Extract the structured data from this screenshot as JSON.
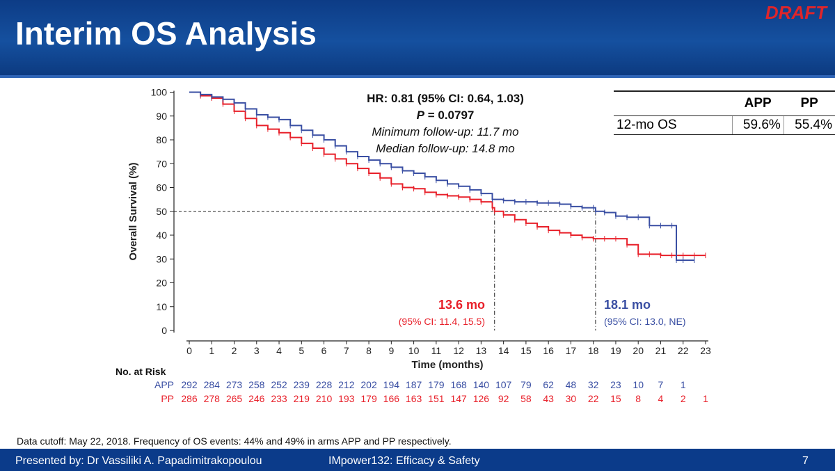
{
  "slide": {
    "title": "Interim OS Analysis",
    "draft": "DRAFT"
  },
  "colors": {
    "app": "#3a4fa3",
    "pp": "#e8202a",
    "header": "#0d3c86"
  },
  "os_table": {
    "columns": [
      "APP",
      "PP"
    ],
    "row_label": "12-mo OS",
    "values": [
      "59.6%",
      "55.4%"
    ]
  },
  "annotation": {
    "hr": "HR: 0.81 (95% CI: 0.64, 1.03)",
    "p_label": "P",
    "p_value": " = 0.0797",
    "min_followup": "Minimum follow-up: 11.7 mo",
    "median_followup": "Median follow-up: 14.8 mo"
  },
  "medians": {
    "pp": {
      "value": "13.6 mo",
      "ci": "(95% CI: 11.4, 15.5)",
      "x": 13.6
    },
    "app": {
      "value": "18.1 mo",
      "ci": "(95% CI: 13.0, NE)",
      "x": 18.1
    }
  },
  "risk_table": {
    "title": "No. at Risk",
    "rows": [
      {
        "label": "APP",
        "values": [
          292,
          284,
          273,
          258,
          252,
          239,
          228,
          212,
          202,
          194,
          187,
          179,
          168,
          140,
          107,
          79,
          62,
          48,
          32,
          23,
          10,
          7,
          1
        ]
      },
      {
        "label": "PP",
        "values": [
          286,
          278,
          265,
          246,
          233,
          219,
          210,
          193,
          179,
          166,
          163,
          151,
          147,
          126,
          92,
          58,
          43,
          30,
          22,
          15,
          8,
          4,
          2,
          1
        ]
      }
    ]
  },
  "chart_data": {
    "type": "line",
    "title": "",
    "xlabel": "Time (months)",
    "ylabel": "Overall Survival (%)",
    "xlim": [
      0,
      23
    ],
    "ylim": [
      0,
      100
    ],
    "xticks": [
      0,
      1,
      2,
      3,
      4,
      5,
      6,
      7,
      8,
      9,
      10,
      11,
      12,
      13,
      14,
      15,
      16,
      17,
      18,
      19,
      20,
      21,
      22,
      23
    ],
    "yticks": [
      0,
      10,
      20,
      30,
      40,
      50,
      60,
      70,
      80,
      90,
      100
    ],
    "reference_line_y": 50,
    "grid": false,
    "series": [
      {
        "name": "APP",
        "x": [
          0,
          0.5,
          1,
          1.5,
          2,
          2.5,
          3,
          3.5,
          4,
          4.5,
          5,
          5.5,
          6,
          6.5,
          7,
          7.5,
          8,
          8.5,
          9,
          9.5,
          10,
          10.5,
          11,
          11.5,
          12,
          12.5,
          13,
          13.5,
          14,
          14.5,
          15,
          15.5,
          16,
          16.5,
          17,
          17.5,
          18,
          18.1,
          18.5,
          19,
          19.5,
          20,
          20.5,
          21,
          21.5,
          21.7,
          22,
          22.5
        ],
        "y": [
          100,
          99,
          98,
          97,
          95.5,
          93,
          90.5,
          89.5,
          88.5,
          86,
          84,
          82,
          80,
          77.5,
          75,
          73,
          71.5,
          70,
          68.5,
          67,
          66,
          64.5,
          63,
          61.5,
          60.5,
          59,
          57.5,
          55,
          54.5,
          54,
          54,
          53.5,
          53.5,
          53,
          52,
          51.5,
          51.5,
          50,
          49.5,
          48,
          47.5,
          47.5,
          44,
          44,
          44,
          29.5,
          29.5,
          29.5
        ]
      },
      {
        "name": "PP",
        "x": [
          0,
          0.5,
          1,
          1.5,
          2,
          2.5,
          3,
          3.5,
          4,
          4.5,
          5,
          5.5,
          6,
          6.5,
          7,
          7.5,
          8,
          8.5,
          9,
          9.5,
          10,
          10.5,
          11,
          11.5,
          12,
          12.5,
          13,
          13.5,
          13.6,
          14,
          14.5,
          15,
          15.5,
          16,
          16.5,
          17,
          17.5,
          18,
          18.5,
          19,
          19.5,
          20,
          20.5,
          21,
          21.5,
          22,
          22.5,
          23
        ],
        "y": [
          100,
          98.5,
          97.5,
          95,
          92,
          89,
          86,
          84.5,
          83,
          81,
          78.5,
          76.5,
          74,
          72,
          70,
          68,
          66,
          64,
          61.5,
          60,
          59.5,
          58,
          57,
          56.5,
          56,
          55,
          54,
          51.5,
          50,
          48.5,
          46.5,
          45,
          43.5,
          42,
          41,
          40,
          39,
          38.5,
          38.5,
          38.5,
          36,
          32,
          32,
          31.5,
          31.5,
          31.5,
          31.5,
          31.5
        ]
      }
    ]
  },
  "footnote": "Data cutoff: May 22, 2018. Frequency of OS events: 44% and 49% in arms APP and PP respectively.",
  "footer": {
    "presenter": "Presented by: Dr Vassiliki A. Papadimitrakopoulou",
    "study": "IMpower132: Efficacy & Safety",
    "page": "7"
  }
}
